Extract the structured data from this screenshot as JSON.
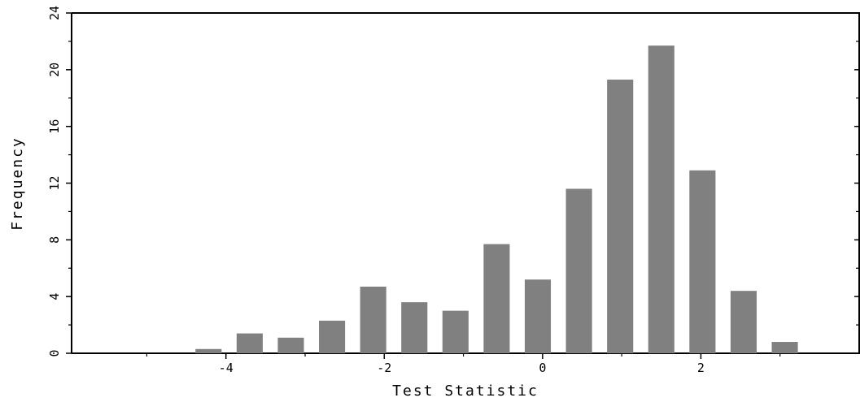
{
  "chart_data": {
    "type": "bar",
    "xlabel": "Test Statistic",
    "ylabel": "Frequency",
    "xlim": [
      -5.95,
      4.0
    ],
    "ylim": [
      0,
      24
    ],
    "x_ticks": [
      -4,
      -2,
      0,
      2
    ],
    "x_tick_labels": [
      "-4",
      "-2",
      "0",
      "2"
    ],
    "y_ticks": [
      0,
      4,
      8,
      12,
      16,
      20,
      24
    ],
    "y_tick_labels": [
      "0",
      "4",
      "8",
      "12",
      "16",
      "20",
      "24"
    ],
    "bin_width": 0.52,
    "bar_width": 0.33,
    "bin_centers": [
      -4.22,
      -3.7,
      -3.18,
      -2.66,
      -2.14,
      -1.62,
      -1.1,
      -0.58,
      -0.06,
      0.46,
      0.98,
      1.5,
      2.02,
      2.54,
      3.06
    ],
    "values": [
      0.3,
      1.4,
      1.1,
      2.3,
      4.7,
      3.6,
      3.0,
      7.7,
      5.2,
      11.6,
      19.3,
      21.7,
      12.9,
      4.4,
      0.8
    ],
    "bar_color": "#808080",
    "grid": false,
    "legend": "none"
  }
}
